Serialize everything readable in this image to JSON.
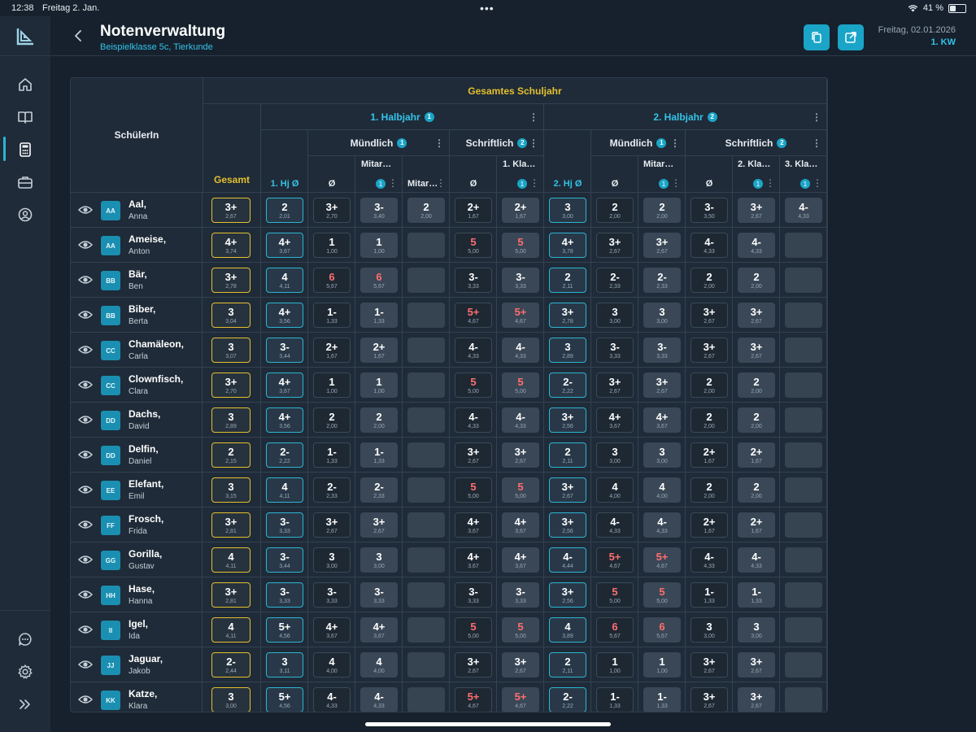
{
  "status_bar": {
    "time": "12:38",
    "date": "Freitag 2. Jan.",
    "battery_percent": "41 %",
    "battery_level": 0.41
  },
  "header": {
    "title": "Notenverwaltung",
    "subtitle": "Beispielklasse 5c, Tierkunde",
    "date": "Freitag, 02.01.2026",
    "week": "1. KW"
  },
  "sidebar": {
    "items": [
      {
        "name": "home-icon"
      },
      {
        "name": "book-icon"
      },
      {
        "name": "calculator-icon"
      },
      {
        "name": "briefcase-icon"
      },
      {
        "name": "profile-icon"
      }
    ],
    "bottom_items": [
      {
        "name": "chat-icon"
      },
      {
        "name": "settings-icon"
      },
      {
        "name": "expand-icon"
      }
    ]
  },
  "table": {
    "top_header": "Gesamtes Schuljahr",
    "student_header": "SchülerIn",
    "gesamt_header": "Gesamt",
    "halbjahr1": {
      "label": "1. Halbjahr",
      "badge": "1"
    },
    "halbjahr2": {
      "label": "2. Halbjahr",
      "badge": "2"
    },
    "h1_muendlich": {
      "label": "Mündlich",
      "badge": "1"
    },
    "h1_schriftlich": {
      "label": "Schriftlich",
      "badge": "2"
    },
    "h2_muendlich": {
      "label": "Mündlich",
      "badge": "1"
    },
    "h2_schriftlich": {
      "label": "Schriftlich",
      "badge": "2"
    },
    "col_labels": {
      "hj1_avg": "1. Hj Ø",
      "m1_avg": "Ø",
      "m1_mit1": "Mitar…",
      "m1_mit2": "Mitar…",
      "s1_avg": "Ø",
      "s1_kla1": "1. Kla…",
      "hj2_avg": "2. Hj Ø",
      "m2_avg": "Ø",
      "m2_mit1": "Mitar…",
      "s2_avg": "Ø",
      "s2_kla2": "2. Kla…",
      "s2_kla3": "3. Kla…"
    },
    "col_badge": "1",
    "rows": [
      {
        "initials": "AA",
        "last": "Aal,",
        "first": "Anna",
        "cells": [
          [
            "3+",
            "2,67"
          ],
          [
            "2",
            "2,01"
          ],
          [
            "3+",
            "2,70"
          ],
          [
            "3-",
            "3,40"
          ],
          [
            "2",
            "2,00"
          ],
          [
            "2+",
            "1,67"
          ],
          [
            "2+",
            "1,67"
          ],
          [
            "3",
            "3,00"
          ],
          [
            "2",
            "2,00"
          ],
          [
            "2",
            "2,00"
          ],
          [
            "3-",
            "3,50"
          ],
          [
            "3+",
            "2,67"
          ],
          [
            "4-",
            "4,33"
          ]
        ]
      },
      {
        "initials": "AA",
        "last": "Ameise,",
        "first": "Anton",
        "cells": [
          [
            "4+",
            "3,74"
          ],
          [
            "4+",
            "3,67"
          ],
          [
            "1",
            "1,00"
          ],
          [
            "1",
            "1,00"
          ],
          null,
          [
            "5",
            "5,00"
          ],
          [
            "5",
            "5,00"
          ],
          [
            "4+",
            "3,78"
          ],
          [
            "3+",
            "2,67"
          ],
          [
            "3+",
            "2,67"
          ],
          [
            "4-",
            "4,33"
          ],
          [
            "4-",
            "4,33"
          ],
          null
        ]
      },
      {
        "initials": "BB",
        "last": "Bär,",
        "first": "Ben",
        "cells": [
          [
            "3+",
            "2,78"
          ],
          [
            "4",
            "4,11"
          ],
          [
            "6",
            "5,67"
          ],
          [
            "6",
            "5,67"
          ],
          null,
          [
            "3-",
            "3,33"
          ],
          [
            "3-",
            "3,33"
          ],
          [
            "2",
            "2,11"
          ],
          [
            "2-",
            "2,33"
          ],
          [
            "2-",
            "2,33"
          ],
          [
            "2",
            "2,00"
          ],
          [
            "2",
            "2,00"
          ],
          null
        ]
      },
      {
        "initials": "BB",
        "last": "Biber,",
        "first": "Berta",
        "cells": [
          [
            "3",
            "3,04"
          ],
          [
            "4+",
            "3,56"
          ],
          [
            "1-",
            "1,33"
          ],
          [
            "1-",
            "1,33"
          ],
          null,
          [
            "5+",
            "4,67"
          ],
          [
            "5+",
            "4,67"
          ],
          [
            "3+",
            "2,78"
          ],
          [
            "3",
            "3,00"
          ],
          [
            "3",
            "3,00"
          ],
          [
            "3+",
            "2,67"
          ],
          [
            "3+",
            "2,67"
          ],
          null
        ]
      },
      {
        "initials": "CC",
        "last": "Chamäleon,",
        "first": "Carla",
        "cells": [
          [
            "3",
            "3,07"
          ],
          [
            "3-",
            "3,44"
          ],
          [
            "2+",
            "1,67"
          ],
          [
            "2+",
            "1,67"
          ],
          null,
          [
            "4-",
            "4,33"
          ],
          [
            "4-",
            "4,33"
          ],
          [
            "3",
            "2,89"
          ],
          [
            "3-",
            "3,33"
          ],
          [
            "3-",
            "3,33"
          ],
          [
            "3+",
            "2,67"
          ],
          [
            "3+",
            "2,67"
          ],
          null
        ]
      },
      {
        "initials": "CC",
        "last": "Clownfisch,",
        "first": "Clara",
        "cells": [
          [
            "3+",
            "2,70"
          ],
          [
            "4+",
            "3,67"
          ],
          [
            "1",
            "1,00"
          ],
          [
            "1",
            "1,00"
          ],
          null,
          [
            "5",
            "5,00"
          ],
          [
            "5",
            "5,00"
          ],
          [
            "2-",
            "2,22"
          ],
          [
            "3+",
            "2,67"
          ],
          [
            "3+",
            "2,67"
          ],
          [
            "2",
            "2,00"
          ],
          [
            "2",
            "2,00"
          ],
          null
        ]
      },
      {
        "initials": "DD",
        "last": "Dachs,",
        "first": "David",
        "cells": [
          [
            "3",
            "2,89"
          ],
          [
            "4+",
            "3,56"
          ],
          [
            "2",
            "2,00"
          ],
          [
            "2",
            "2,00"
          ],
          null,
          [
            "4-",
            "4,33"
          ],
          [
            "4-",
            "4,33"
          ],
          [
            "3+",
            "2,56"
          ],
          [
            "4+",
            "3,67"
          ],
          [
            "4+",
            "3,67"
          ],
          [
            "2",
            "2,00"
          ],
          [
            "2",
            "2,00"
          ],
          null
        ]
      },
      {
        "initials": "DD",
        "last": "Delfin,",
        "first": "Daniel",
        "cells": [
          [
            "2",
            "2,15"
          ],
          [
            "2-",
            "2,22"
          ],
          [
            "1-",
            "1,33"
          ],
          [
            "1-",
            "1,33"
          ],
          null,
          [
            "3+",
            "2,67"
          ],
          [
            "3+",
            "2,67"
          ],
          [
            "2",
            "2,11"
          ],
          [
            "3",
            "3,00"
          ],
          [
            "3",
            "3,00"
          ],
          [
            "2+",
            "1,67"
          ],
          [
            "2+",
            "1,67"
          ],
          null
        ]
      },
      {
        "initials": "EE",
        "last": "Elefant,",
        "first": "Emil",
        "cells": [
          [
            "3",
            "3,15"
          ],
          [
            "4",
            "4,11"
          ],
          [
            "2-",
            "2,33"
          ],
          [
            "2-",
            "2,33"
          ],
          null,
          [
            "5",
            "5,00"
          ],
          [
            "5",
            "5,00"
          ],
          [
            "3+",
            "2,67"
          ],
          [
            "4",
            "4,00"
          ],
          [
            "4",
            "4,00"
          ],
          [
            "2",
            "2,00"
          ],
          [
            "2",
            "2,00"
          ],
          null
        ]
      },
      {
        "initials": "FF",
        "last": "Frosch,",
        "first": "Frida",
        "cells": [
          [
            "3+",
            "2,81"
          ],
          [
            "3-",
            "3,33"
          ],
          [
            "3+",
            "2,67"
          ],
          [
            "3+",
            "2,67"
          ],
          null,
          [
            "4+",
            "3,67"
          ],
          [
            "4+",
            "3,67"
          ],
          [
            "3+",
            "2,56"
          ],
          [
            "4-",
            "4,33"
          ],
          [
            "4-",
            "4,33"
          ],
          [
            "2+",
            "1,67"
          ],
          [
            "2+",
            "1,67"
          ],
          null
        ]
      },
      {
        "initials": "GG",
        "last": "Gorilla,",
        "first": "Gustav",
        "cells": [
          [
            "4",
            "4,11"
          ],
          [
            "3-",
            "3,44"
          ],
          [
            "3",
            "3,00"
          ],
          [
            "3",
            "3,00"
          ],
          null,
          [
            "4+",
            "3,67"
          ],
          [
            "4+",
            "3,67"
          ],
          [
            "4-",
            "4,44"
          ],
          [
            "5+",
            "4,67"
          ],
          [
            "5+",
            "4,67"
          ],
          [
            "4-",
            "4,33"
          ],
          [
            "4-",
            "4,33"
          ],
          null
        ]
      },
      {
        "initials": "HH",
        "last": "Hase,",
        "first": "Hanna",
        "cells": [
          [
            "3+",
            "2,81"
          ],
          [
            "3-",
            "3,33"
          ],
          [
            "3-",
            "3,33"
          ],
          [
            "3-",
            "3,33"
          ],
          null,
          [
            "3-",
            "3,33"
          ],
          [
            "3-",
            "3,33"
          ],
          [
            "3+",
            "2,56"
          ],
          [
            "5",
            "5,00"
          ],
          [
            "5",
            "5,00"
          ],
          [
            "1-",
            "1,33"
          ],
          [
            "1-",
            "1,33"
          ],
          null
        ]
      },
      {
        "initials": "II",
        "last": "Igel,",
        "first": "Ida",
        "cells": [
          [
            "4",
            "4,11"
          ],
          [
            "5+",
            "4,56"
          ],
          [
            "4+",
            "3,67"
          ],
          [
            "4+",
            "3,67"
          ],
          null,
          [
            "5",
            "5,00"
          ],
          [
            "5",
            "5,00"
          ],
          [
            "4",
            "3,89"
          ],
          [
            "6",
            "5,67"
          ],
          [
            "6",
            "5,67"
          ],
          [
            "3",
            "3,00"
          ],
          [
            "3",
            "3,00"
          ],
          null
        ]
      },
      {
        "initials": "JJ",
        "last": "Jaguar,",
        "first": "Jakob",
        "cells": [
          [
            "2-",
            "2,44"
          ],
          [
            "3",
            "3,11"
          ],
          [
            "4",
            "4,00"
          ],
          [
            "4",
            "4,00"
          ],
          null,
          [
            "3+",
            "2,67"
          ],
          [
            "3+",
            "2,67"
          ],
          [
            "2",
            "2,11"
          ],
          [
            "1",
            "1,00"
          ],
          [
            "1",
            "1,00"
          ],
          [
            "3+",
            "2,67"
          ],
          [
            "3+",
            "2,67"
          ],
          null
        ]
      },
      {
        "initials": "KK",
        "last": "Katze,",
        "first": "Klara",
        "cells": [
          [
            "3",
            "3,00"
          ],
          [
            "5+",
            "4,56"
          ],
          [
            "4-",
            "4,33"
          ],
          [
            "4-",
            "4,33"
          ],
          null,
          [
            "5+",
            "4,67"
          ],
          [
            "5+",
            "4,67"
          ],
          [
            "2-",
            "2,22"
          ],
          [
            "1-",
            "1,33"
          ],
          [
            "1-",
            "1,33"
          ],
          [
            "3+",
            "2,67"
          ],
          [
            "3+",
            "2,67"
          ],
          null
        ]
      }
    ]
  }
}
